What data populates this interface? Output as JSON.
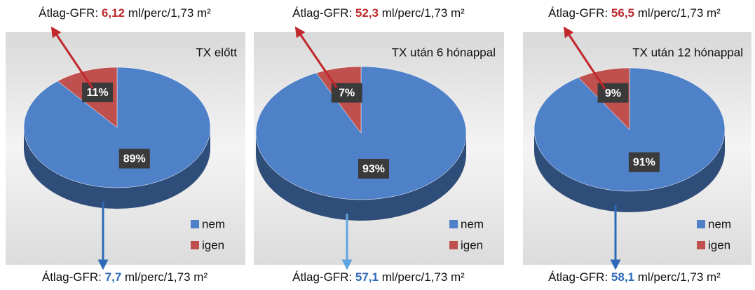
{
  "chart_data": [
    {
      "type": "pie",
      "title": "TX előtt",
      "categories": [
        "nem",
        "igen"
      ],
      "values": [
        89,
        11
      ],
      "value_labels": [
        "89%",
        "11%"
      ],
      "colors": [
        "#4f81c9",
        "#c0504d"
      ],
      "annotations": {
        "top": {
          "label": "Átlag-GFR:",
          "value": "6,12",
          "unit": "ml/perc/1,73 m²"
        },
        "bottom": {
          "label": "Átlag-GFR:",
          "value": "7,7",
          "unit": "ml/perc/1,73 m²"
        }
      }
    },
    {
      "type": "pie",
      "title": "TX után 6 hónappal",
      "categories": [
        "nem",
        "igen"
      ],
      "values": [
        93,
        7
      ],
      "value_labels": [
        "93%",
        "7%"
      ],
      "colors": [
        "#4f81c9",
        "#c0504d"
      ],
      "annotations": {
        "top": {
          "label": "Átlag-GFR:",
          "value": "52,3",
          "unit": "ml/perc/1,73 m²"
        },
        "bottom": {
          "label": "Átlag-GFR:",
          "value": "57,1",
          "unit": "ml/perc/1,73 m²"
        }
      }
    },
    {
      "type": "pie",
      "title": "TX után 12 hónappal",
      "categories": [
        "nem",
        "igen"
      ],
      "values": [
        91,
        9
      ],
      "value_labels": [
        "91%",
        "9%"
      ],
      "colors": [
        "#4f81c9",
        "#c0504d"
      ],
      "annotations": {
        "top": {
          "label": "Átlag-GFR:",
          "value": "56,5",
          "unit": "ml/perc/1,73 m²"
        },
        "bottom": {
          "label": "Átlag-GFR:",
          "value": "58,1",
          "unit": "ml/perc/1,73 m²"
        }
      }
    }
  ]
}
